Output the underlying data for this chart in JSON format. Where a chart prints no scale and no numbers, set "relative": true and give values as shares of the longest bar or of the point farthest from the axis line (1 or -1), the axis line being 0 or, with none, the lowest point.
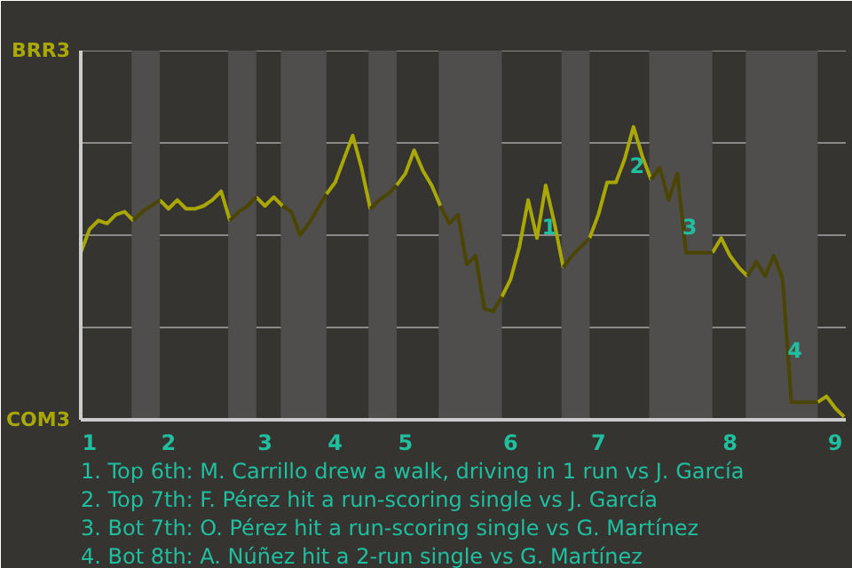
{
  "chart_data": {
    "type": "line",
    "relative": true,
    "categories": [
      null,
      "1",
      null,
      null,
      null,
      null,
      null,
      null,
      null,
      null,
      "2",
      null,
      null,
      null,
      null,
      null,
      null,
      null,
      null,
      null,
      null,
      "3",
      null,
      null,
      null,
      null,
      null,
      null,
      null,
      "4",
      null,
      null,
      null,
      null,
      null,
      null,
      null,
      "5",
      null,
      null,
      null,
      null,
      null,
      null,
      null,
      null,
      null,
      null,
      null,
      "6",
      null,
      null,
      null,
      null,
      null,
      null,
      null,
      null,
      null,
      "7",
      null,
      null,
      null,
      null,
      null,
      null,
      null,
      null,
      null,
      null,
      null,
      null,
      null,
      null,
      "8",
      null,
      null,
      null,
      null,
      null,
      null,
      null,
      null,
      null,
      null,
      null,
      "9",
      null
    ],
    "series": [
      {
        "color": "#a8a800",
        "values": [
          0.57,
          0.65,
          0.68,
          0.67,
          0.7,
          0.71,
          0.68,
          null,
          null,
          0.75,
          0.72,
          0.75,
          0.72,
          0.72,
          0.73,
          0.75,
          0.78,
          0.68,
          null,
          null,
          0.76,
          0.73,
          0.76,
          0.73,
          null,
          null,
          null,
          null,
          0.77,
          0.81,
          0.89,
          0.97,
          0.86,
          0.72,
          null,
          null,
          0.8,
          0.84,
          0.92,
          0.85,
          0.8,
          0.73,
          null,
          null,
          null,
          null,
          null,
          null,
          0.42,
          0.48,
          0.59,
          0.75,
          0.62,
          0.8,
          0.67,
          0.52,
          null,
          null,
          0.62,
          0.7,
          0.81,
          0.81,
          0.89,
          1,
          0.9,
          0.82,
          null,
          null,
          null,
          null,
          null,
          null,
          0.57,
          0.62,
          0.56,
          0.52,
          0.49,
          null,
          null,
          null,
          null,
          null,
          null,
          null,
          0.06,
          0.08,
          0.04,
          0.01
        ]
      },
      {
        "color": "#4a4500",
        "values": [
          null,
          null,
          null,
          null,
          null,
          null,
          0.68,
          0.71,
          0.73,
          0.75,
          null,
          null,
          null,
          null,
          null,
          null,
          null,
          0.68,
          0.71,
          0.73,
          0.76,
          null,
          null,
          0.73,
          0.71,
          0.63,
          0.67,
          0.72,
          0.77,
          null,
          null,
          null,
          null,
          0.72,
          0.75,
          0.77,
          0.8,
          null,
          null,
          null,
          null,
          0.73,
          0.67,
          0.7,
          0.53,
          0.56,
          0.38,
          0.37,
          0.42,
          null,
          null,
          null,
          null,
          null,
          null,
          0.52,
          0.56,
          0.59,
          0.62,
          null,
          null,
          null,
          null,
          null,
          null,
          0.82,
          0.86,
          0.75,
          0.84,
          0.57,
          0.57,
          0.57,
          0.57,
          null,
          null,
          null,
          0.49,
          0.54,
          0.49,
          0.56,
          0.48,
          0.06,
          0.06,
          0.06,
          0.06,
          null,
          null,
          null
        ]
      }
    ],
    "grid": "y",
    "annotations": [
      "BRR3",
      "COM3",
      "1",
      "2",
      "3",
      "4",
      "1. Top 6th: M. Carrillo drew a walk, driving in 1 run vs J. García",
      "2. Top 7th: F. Pérez hit a run-scoring single vs J. García",
      "3. Bot 7th: O. Pérez hit a run-scoring single vs G. Martínez",
      "4. Bot 8th: A. Núñez hit a 2-run single vs G. Martínez"
    ]
  }
}
